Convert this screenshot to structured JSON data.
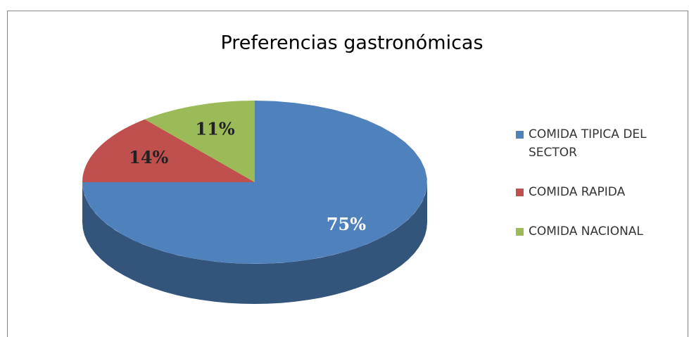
{
  "chart_data": {
    "type": "pie",
    "title": "Preferencias gastronómicas",
    "categories": [
      "COMIDA TIPICA DEL SECTOR",
      "COMIDA RAPIDA",
      "COMIDA NACIONAL"
    ],
    "values": [
      75,
      14,
      11
    ],
    "value_labels": [
      "75%",
      "14%",
      "11%"
    ],
    "colors": [
      "#4f81bd",
      "#c0504d",
      "#9bbb59"
    ],
    "legend": "right"
  }
}
